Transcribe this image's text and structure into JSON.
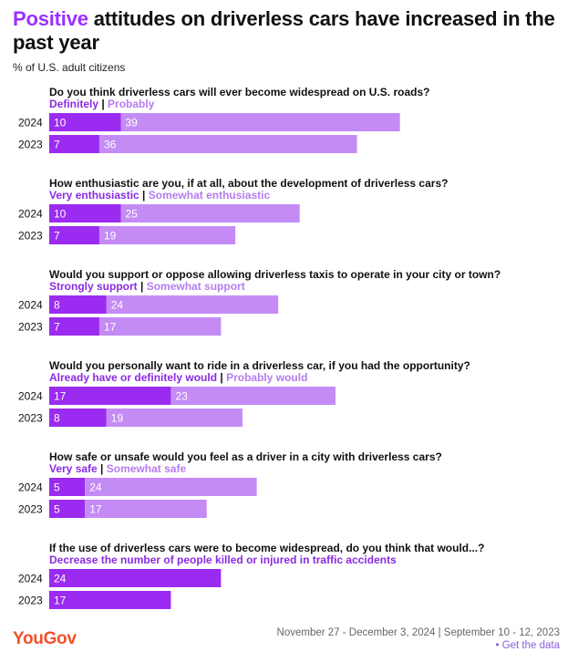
{
  "title": {
    "highlight": "Positive",
    "rest": " attitudes on driverless cars have increased in the past year"
  },
  "subtitle": "% of U.S. adult citizens",
  "colors": {
    "dark": "#9b2bf0",
    "light": "#c48bf5",
    "label_dark": "#8a2be2",
    "label_light": "#b57cf0",
    "highlight": "#9b30ff"
  },
  "chart_data": {
    "type": "bar",
    "stacked": true,
    "orientation": "horizontal",
    "xlim": [
      0,
      100
    ],
    "groups": [
      {
        "question": "Do you think driverless cars will ever become widespread on U.S. roads?",
        "series": [
          "Definitely",
          "Probably"
        ],
        "rows": [
          {
            "year": "2024",
            "values": [
              10,
              39
            ]
          },
          {
            "year": "2023",
            "values": [
              7,
              36
            ]
          }
        ]
      },
      {
        "question": "How enthusiastic are you, if at all, about the development of driverless cars?",
        "series": [
          "Very enthusiastic",
          "Somewhat enthusiastic"
        ],
        "rows": [
          {
            "year": "2024",
            "values": [
              10,
              25
            ]
          },
          {
            "year": "2023",
            "values": [
              7,
              19
            ]
          }
        ]
      },
      {
        "question": "Would you support or oppose allowing driverless taxis to operate in your city or town?",
        "series": [
          "Strongly support",
          "Somewhat support"
        ],
        "rows": [
          {
            "year": "2024",
            "values": [
              8,
              24
            ]
          },
          {
            "year": "2023",
            "values": [
              7,
              17
            ]
          }
        ]
      },
      {
        "question": "Would you personally want to ride in a driverless car, if you had the opportunity?",
        "series": [
          "Already have or definitely would",
          "Probably would"
        ],
        "rows": [
          {
            "year": "2024",
            "values": [
              17,
              23
            ]
          },
          {
            "year": "2023",
            "values": [
              8,
              19
            ]
          }
        ]
      },
      {
        "question": "How safe or unsafe would you feel as a driver in a city with driverless cars?",
        "series": [
          "Very safe",
          "Somewhat safe"
        ],
        "rows": [
          {
            "year": "2024",
            "values": [
              5,
              24
            ]
          },
          {
            "year": "2023",
            "values": [
              5,
              17
            ]
          }
        ]
      },
      {
        "question": "If the use of driverless cars were to become widespread, do you think that would...?",
        "series": [
          "Decrease the number of people killed or injured in traffic accidents"
        ],
        "rows": [
          {
            "year": "2024",
            "values": [
              24
            ]
          },
          {
            "year": "2023",
            "values": [
              17
            ]
          }
        ]
      }
    ]
  },
  "footer": {
    "logo": "YouGov",
    "dates": "November 27 - December 3, 2024 | September 10 - 12, 2023",
    "link": "• Get the data"
  }
}
